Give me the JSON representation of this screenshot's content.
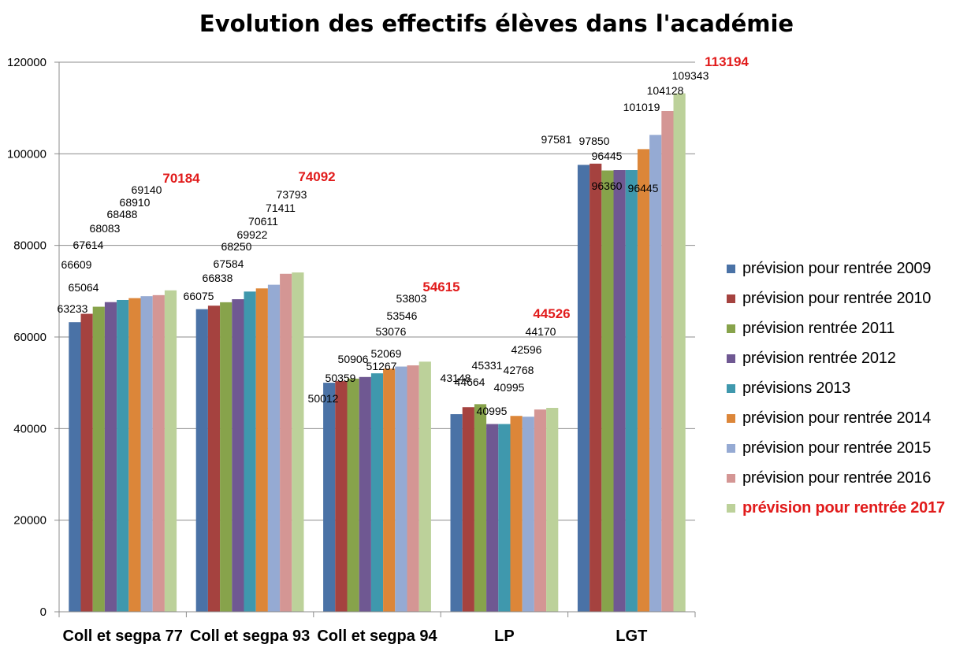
{
  "chart_data": {
    "type": "bar",
    "title": "Evolution des effectifs élèves dans l'académie",
    "xlabel": "",
    "ylabel": "",
    "ylim": [
      0,
      120000
    ],
    "yticks": [
      "0",
      "20000",
      "40000",
      "60000",
      "80000",
      "100000",
      "120000"
    ],
    "grid": true,
    "legend_position": "right",
    "categories": [
      "Coll et segpa 77",
      "Coll et segpa 93",
      "Coll et segpa 94",
      "LP",
      "LGT"
    ],
    "series": [
      {
        "name": "prévision pour rentrée 2009",
        "color": "#4a72a6",
        "values": [
          63233,
          66075,
          50012,
          43148,
          97581
        ]
      },
      {
        "name": "prévision pour rentrée 2010",
        "color": "#a5423f",
        "values": [
          65064,
          66838,
          50359,
          44664,
          97850
        ]
      },
      {
        "name": "prévision rentrée 2011",
        "color": "#87a34b",
        "values": [
          66609,
          67584,
          50906,
          45331,
          96360
        ]
      },
      {
        "name": "prévision rentrée 2012",
        "color": "#6f5892",
        "values": [
          67614,
          68250,
          51267,
          40995,
          96445
        ]
      },
      {
        "name": "prévisions 2013",
        "color": "#3f98ad",
        "values": [
          68083,
          69922,
          52069,
          40995,
          96445
        ]
      },
      {
        "name": "prévision pour rentrée 2014",
        "color": "#dc8639",
        "values": [
          68488,
          70611,
          53076,
          42768,
          101019
        ]
      },
      {
        "name": "prévision pour rentrée 2015",
        "color": "#95aad3",
        "values": [
          68910,
          71411,
          53546,
          42596,
          104128
        ]
      },
      {
        "name": "prévision pour rentrée 2016",
        "color": "#d49694",
        "values": [
          69140,
          73793,
          53803,
          44170,
          109343
        ]
      },
      {
        "name": "prévision pour rentrée 2017",
        "color": "#bcd19a",
        "values": [
          70184,
          74092,
          54615,
          44526,
          113194
        ],
        "highlight": true
      }
    ],
    "highlight_color": "#e11b1b"
  }
}
